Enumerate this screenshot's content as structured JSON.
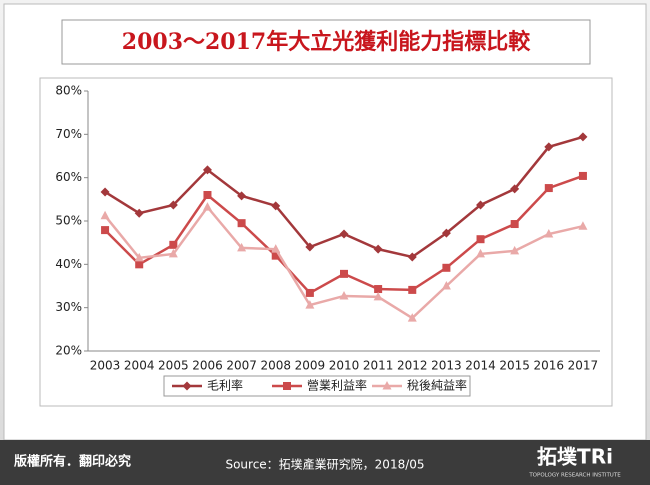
{
  "chart_data": {
    "type": "line",
    "title": "2003～2017年大立光獲利能力指標比較",
    "categories": [
      "2003",
      "2004",
      "2005",
      "2006",
      "2007",
      "2008",
      "2009",
      "2010",
      "2011",
      "2012",
      "2013",
      "2014",
      "2015",
      "2016",
      "2017"
    ],
    "series": [
      {
        "name": "毛利率",
        "color": "#a3383b",
        "marker": "diamond",
        "values": [
          56.7,
          51.8,
          53.7,
          61.8,
          55.8,
          53.5,
          44,
          47,
          43.5,
          41.7,
          47.2,
          53.7,
          57.4,
          67.1,
          69.4
        ]
      },
      {
        "name": "營業利益率",
        "color": "#cc4a4b",
        "marker": "square",
        "values": [
          47.9,
          40,
          44.5,
          56,
          49.5,
          42,
          33.4,
          37.8,
          34.3,
          34.1,
          39.2,
          45.8,
          49.3,
          57.6,
          60.4
        ]
      },
      {
        "name": "稅後純益率",
        "color": "#e9a9a8",
        "marker": "triangle",
        "values": [
          51.2,
          41.5,
          42.4,
          53.2,
          43.8,
          43.5,
          30.6,
          32.7,
          32.5,
          27.6,
          35,
          42.4,
          43.1,
          47,
          48.8
        ]
      }
    ],
    "ylim": [
      20,
      80
    ],
    "yticks": [
      {
        "value": 20,
        "label": "20%"
      },
      {
        "value": 30,
        "label": "30%"
      },
      {
        "value": 40,
        "label": "40%"
      },
      {
        "value": 50,
        "label": "50%"
      },
      {
        "value": 60,
        "label": "60%"
      },
      {
        "value": 70,
        "label": "70%"
      },
      {
        "value": 80,
        "label": "80%"
      }
    ],
    "grid": false,
    "legend": "bottom"
  },
  "footer": {
    "copyright": "版權所有．翻印必究",
    "source": "Source：拓墣產業研究院，2018/05",
    "logo": "拓墣TRi",
    "logo_sub": "TOPOLOGY RESEARCH INSTITUTE"
  }
}
